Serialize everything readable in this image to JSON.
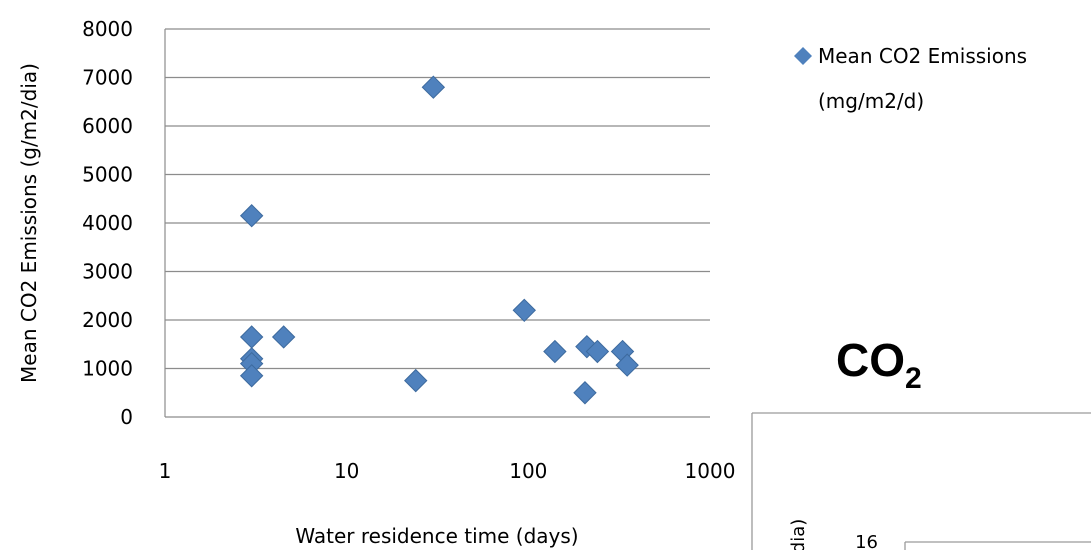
{
  "chart_data": [
    {
      "type": "scatter",
      "title": "",
      "xlabel": "Water residence time (days)",
      "ylabel": "Mean CO2 Emissions  (g/m2/dia)",
      "x_scale": "log",
      "xlim": [
        1,
        1000
      ],
      "ylim": [
        0,
        8000
      ],
      "x_ticks": [
        "1",
        "10",
        "100",
        "1000"
      ],
      "y_ticks": [
        "0",
        "1000",
        "2000",
        "3000",
        "4000",
        "5000",
        "6000",
        "7000",
        "8000"
      ],
      "grid": "horizontal",
      "legend_position": "top-right",
      "marker": "diamond",
      "color": "#4F81BD",
      "series": [
        {
          "name": "Mean CO2 Emissions (mg/m2/d)",
          "legend_lines": [
            "Mean CO2 Emissions",
            "(mg/m2/d)"
          ],
          "points": [
            {
              "x": 3,
              "y": 4150
            },
            {
              "x": 3,
              "y": 1650
            },
            {
              "x": 3,
              "y": 1200
            },
            {
              "x": 3,
              "y": 1100
            },
            {
              "x": 3,
              "y": 850
            },
            {
              "x": 4.5,
              "y": 1650
            },
            {
              "x": 24,
              "y": 750
            },
            {
              "x": 30,
              "y": 6800
            },
            {
              "x": 95,
              "y": 2200
            },
            {
              "x": 140,
              "y": 1350
            },
            {
              "x": 205,
              "y": 500
            },
            {
              "x": 210,
              "y": 1450
            },
            {
              "x": 240,
              "y": 1350
            },
            {
              "x": 330,
              "y": 1350
            },
            {
              "x": 350,
              "y": 1070
            }
          ]
        }
      ]
    },
    {
      "type": "scatter",
      "title": "CO2",
      "title_main": "CO",
      "title_sub": "2",
      "ylabel_fragment": "dia)",
      "y_ticks": [
        "16"
      ]
    }
  ]
}
